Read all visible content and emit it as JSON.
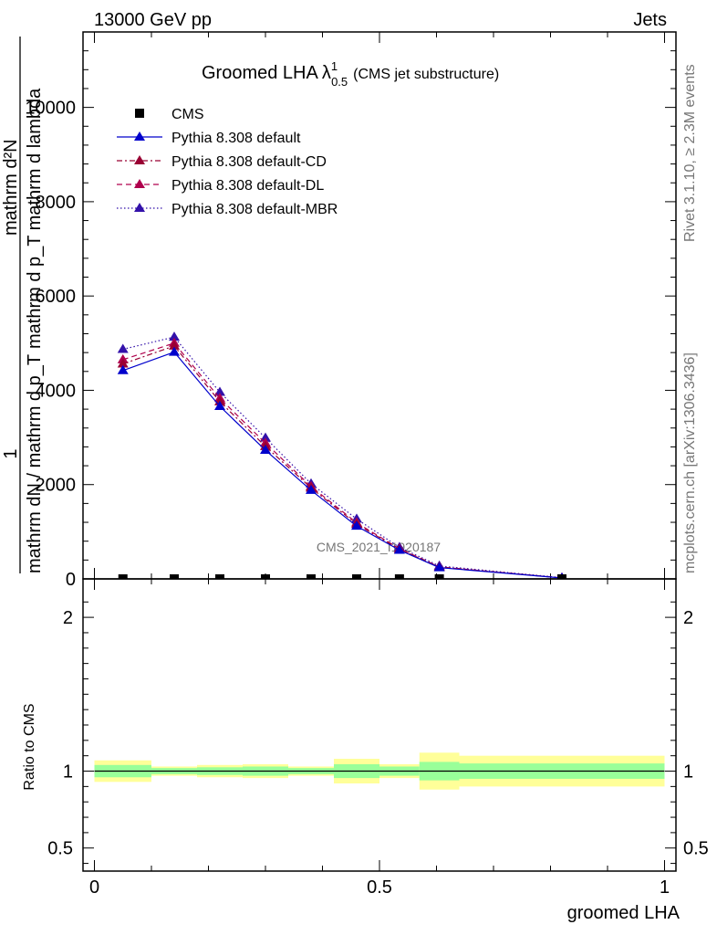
{
  "header": {
    "energy_label": "13000 GeV pp",
    "category_label": "Jets"
  },
  "side_text": {
    "rivet": "Rivet 3.1.10, ≥ 2.3M events",
    "site": "mcplots.cern.ch [arXiv:1306.3436]"
  },
  "watermark": "CMS_2021_I1920187",
  "main_title": {
    "text": "Groomed LHA",
    "symbol": "λ",
    "sup": "1",
    "sub": "0.5",
    "suffix": "(CMS jet substructure)"
  },
  "ylabel_main": {
    "one": "1",
    "numerator": "mathrm d²N",
    "num_part2": "mathrm d p_T mathrm d lambda",
    "denominator": "mathrm dN / mathrm d p_T"
  },
  "ylabel_ratio": "Ratio to CMS",
  "xlabel": "groomed LHA",
  "legend": [
    {
      "label": "CMS"
    },
    {
      "label": "Pythia 8.308 default"
    },
    {
      "label": "Pythia 8.308 default-CD"
    },
    {
      "label": "Pythia 8.308 default-DL"
    },
    {
      "label": "Pythia 8.308 default-MBR"
    }
  ],
  "colors": {
    "cms": "#000000",
    "default": "#0000cc",
    "cd": "#990033",
    "dl": "#b0004d",
    "mbr": "#3311aa",
    "band_inner": "#99ff99",
    "band_outer": "#ffff99"
  },
  "chart_data": [
    {
      "type": "line",
      "title": "Groomed LHA λ^1_0.5 (CMS jet substructure)",
      "xlim": [
        -0.02,
        1.02
      ],
      "ylim": [
        0,
        11600
      ],
      "yticks": [
        0,
        2000,
        4000,
        6000,
        8000,
        10000
      ],
      "ytick_labels": [
        "0",
        "2000",
        "4000",
        "6000",
        "8000",
        "10000"
      ],
      "x": [
        0.05,
        0.14,
        0.22,
        0.3,
        0.38,
        0.46,
        0.535,
        0.605,
        0.82
      ],
      "series": [
        {
          "name": "CMS",
          "style": "marker",
          "values": [
            0,
            0,
            0,
            0,
            0,
            0,
            0,
            0,
            0
          ]
        },
        {
          "name": "Pythia 8.308 default",
          "style": "solid",
          "values": [
            4420,
            4810,
            3660,
            2730,
            1880,
            1120,
            610,
            240,
            20
          ]
        },
        {
          "name": "Pythia 8.308 default-CD",
          "style": "dashdot",
          "values": [
            4560,
            4940,
            3760,
            2810,
            1930,
            1160,
            630,
            250,
            20
          ]
        },
        {
          "name": "Pythia 8.308 default-DL",
          "style": "dashed",
          "values": [
            4650,
            5000,
            3830,
            2880,
            1960,
            1190,
            640,
            255,
            20
          ]
        },
        {
          "name": "Pythia 8.308 default-MBR",
          "style": "dotted",
          "values": [
            4870,
            5130,
            3960,
            2990,
            2020,
            1270,
            670,
            275,
            25
          ]
        }
      ]
    },
    {
      "type": "area",
      "title": "",
      "ylabel": "Ratio to CMS",
      "xlabel": "groomed LHA",
      "xlim": [
        -0.02,
        1.02
      ],
      "ylim": [
        0.35,
        2.25
      ],
      "xticks": [
        0,
        0.5,
        1
      ],
      "xtick_labels": [
        "0",
        "0.5",
        "1"
      ],
      "yticks": [
        0.5,
        1,
        2
      ],
      "ytick_labels": [
        "0.5",
        "1",
        "2"
      ],
      "bins": [
        {
          "x0": 0.0,
          "x1": 0.1,
          "inner": [
            0.96,
            1.04
          ],
          "outer": [
            0.93,
            1.07
          ]
        },
        {
          "x0": 0.1,
          "x1": 0.18,
          "inner": [
            0.98,
            1.02
          ],
          "outer": [
            0.97,
            1.03
          ]
        },
        {
          "x0": 0.18,
          "x1": 0.26,
          "inner": [
            0.975,
            1.025
          ],
          "outer": [
            0.96,
            1.04
          ]
        },
        {
          "x0": 0.26,
          "x1": 0.34,
          "inner": [
            0.97,
            1.03
          ],
          "outer": [
            0.955,
            1.045
          ]
        },
        {
          "x0": 0.34,
          "x1": 0.42,
          "inner": [
            0.98,
            1.02
          ],
          "outer": [
            0.97,
            1.03
          ]
        },
        {
          "x0": 0.42,
          "x1": 0.5,
          "inner": [
            0.955,
            1.045
          ],
          "outer": [
            0.92,
            1.08
          ]
        },
        {
          "x0": 0.5,
          "x1": 0.57,
          "inner": [
            0.97,
            1.03
          ],
          "outer": [
            0.955,
            1.045
          ]
        },
        {
          "x0": 0.57,
          "x1": 0.64,
          "inner": [
            0.94,
            1.06
          ],
          "outer": [
            0.88,
            1.12
          ]
        },
        {
          "x0": 0.64,
          "x1": 1.0,
          "inner": [
            0.95,
            1.05
          ],
          "outer": [
            0.9,
            1.1
          ]
        }
      ]
    }
  ]
}
